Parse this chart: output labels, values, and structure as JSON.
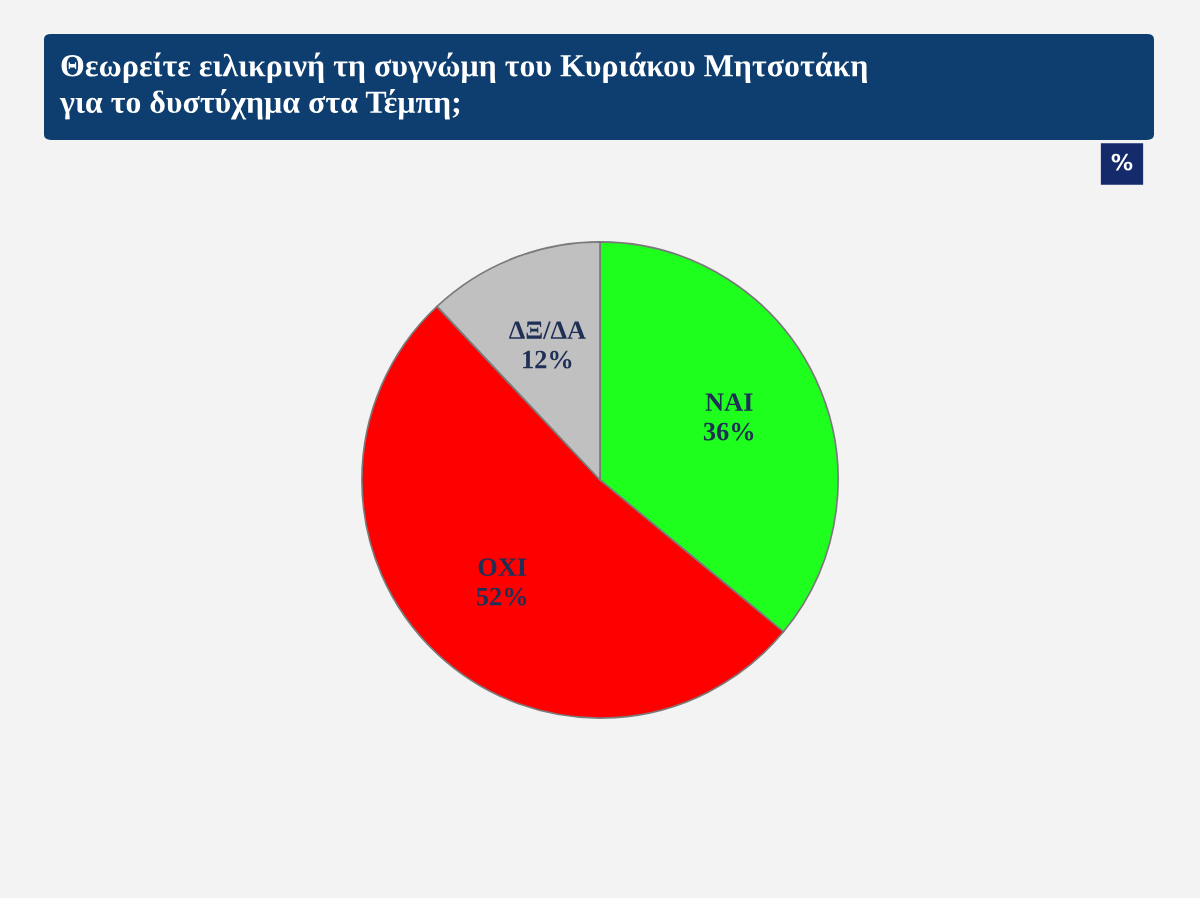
{
  "chart_data": {
    "type": "pie",
    "title": "Θεωρείτε ειλικρινή τη συγνώμη του Κυριάκου Μητσοτάκη\nγια το δυστύχημα στα Τέμπη;",
    "annotations": [
      "%"
    ],
    "categories": [
      "ΝΑΙ",
      "ΟΧΙ",
      "ΔΞ/ΔΑ"
    ],
    "values": [
      36,
      52,
      12
    ],
    "colors": [
      "#1eff1e",
      "#ff0000",
      "#c0c0c0"
    ],
    "value_labels": [
      "36%",
      "52%",
      "12%"
    ]
  }
}
